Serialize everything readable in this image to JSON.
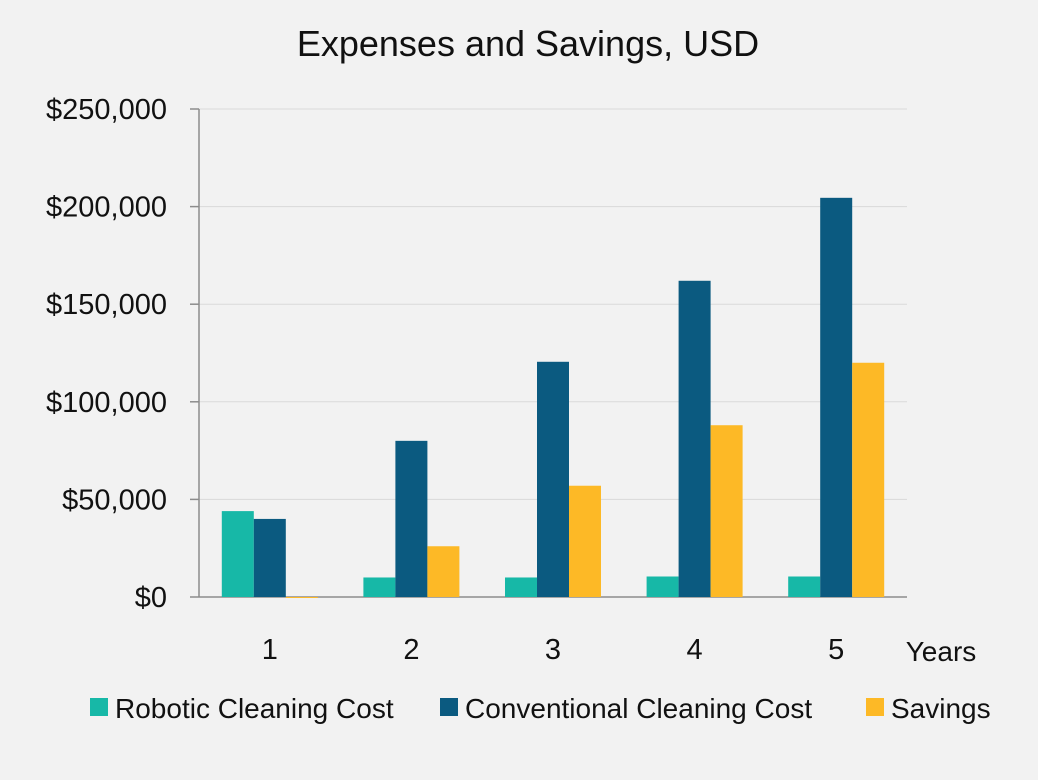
{
  "chart_data": {
    "type": "bar",
    "title": "Expenses and Savings, USD",
    "xlabel": "Years",
    "ylabel": "",
    "categories": [
      "1",
      "2",
      "3",
      "4",
      "5"
    ],
    "series": [
      {
        "name": "Robotic Cleaning Cost",
        "color": "#17b8a7",
        "values": [
          44000,
          10000,
          10000,
          10500,
          10500
        ]
      },
      {
        "name": "Conventional Cleaning Cost",
        "color": "#0b5a80",
        "values": [
          40000,
          80000,
          120500,
          162000,
          204500
        ]
      },
      {
        "name": "Savings",
        "color": "#fdb926",
        "values": [
          -500,
          26000,
          57000,
          88000,
          120000
        ]
      }
    ],
    "ylim": [
      0,
      250000
    ],
    "yticks": [
      0,
      50000,
      100000,
      150000,
      200000,
      250000
    ],
    "ytick_labels": [
      "$0",
      "$50,000",
      "$100,000",
      "$150,000",
      "$200,000",
      "$250,000"
    ],
    "grid": true,
    "legend_position": "bottom"
  }
}
